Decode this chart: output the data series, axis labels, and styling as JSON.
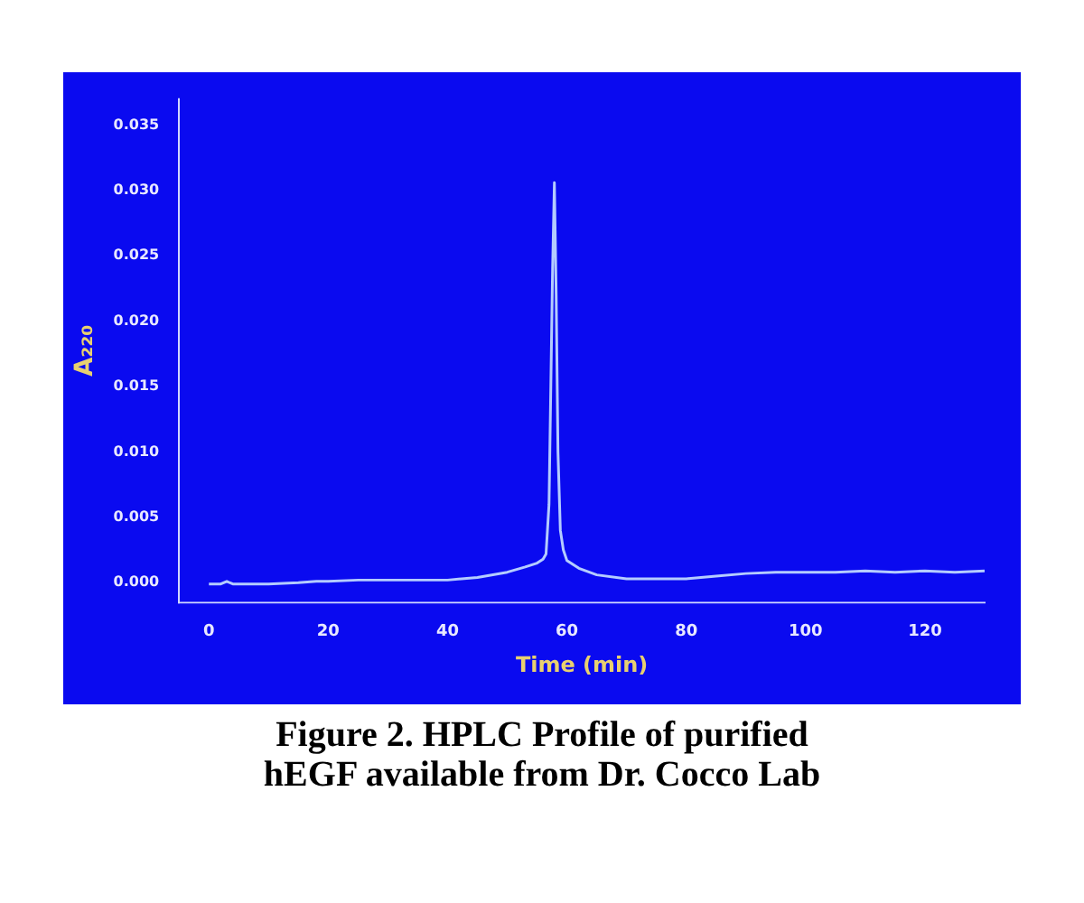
{
  "chart_data": {
    "type": "line",
    "title": "Figure 2. HPLC Profile of purified hEGF available from Dr. Cocco Lab",
    "xlabel": "Time (min)",
    "ylabel": "A₂₂₀",
    "marker": "none",
    "x": [
      0,
      2,
      3,
      4,
      6,
      10,
      15,
      18,
      20,
      25,
      30,
      35,
      40,
      45,
      50,
      53,
      55,
      56,
      56.5,
      57,
      57.3,
      57.6,
      57.9,
      58.2,
      58.5,
      58.9,
      59.4,
      60,
      62,
      65,
      70,
      75,
      80,
      85,
      90,
      95,
      100,
      105,
      110,
      115,
      120,
      125,
      130
    ],
    "series": [
      {
        "color": "#b4ccff",
        "values": [
          -0.0001,
          -0.0001,
          0.0001,
          -0.0001,
          -0.0001,
          -0.0001,
          0,
          0.0001,
          0.0001,
          0.0002,
          0.0002,
          0.0002,
          0.0002,
          0.0004,
          0.0008,
          0.0012,
          0.0015,
          0.0018,
          0.0022,
          0.006,
          0.015,
          0.024,
          0.0306,
          0.022,
          0.01,
          0.004,
          0.0025,
          0.0017,
          0.0011,
          0.0006,
          0.0003,
          0.0003,
          0.0003,
          0.0005,
          0.0007,
          0.0008,
          0.0008,
          0.0008,
          0.0009,
          0.0008,
          0.0009,
          0.0008,
          0.0009
        ]
      }
    ],
    "xlim": [
      -5,
      130
    ],
    "xticks": [
      0,
      20,
      40,
      60,
      80,
      100,
      120
    ],
    "ylim": [
      -0.0015,
      0.037
    ],
    "yticks": [
      {
        "value": 0,
        "label": "0.000"
      },
      {
        "value": 0.005,
        "label": "0.005"
      },
      {
        "value": 0.01,
        "label": "0.010"
      },
      {
        "value": 0.015,
        "label": "0.015"
      },
      {
        "value": 0.02,
        "label": "0.020"
      },
      {
        "value": 0.025,
        "label": "0.025"
      },
      {
        "value": 0.03,
        "label": "0.030"
      },
      {
        "value": 0.035,
        "label": "0.035"
      }
    ]
  }
}
